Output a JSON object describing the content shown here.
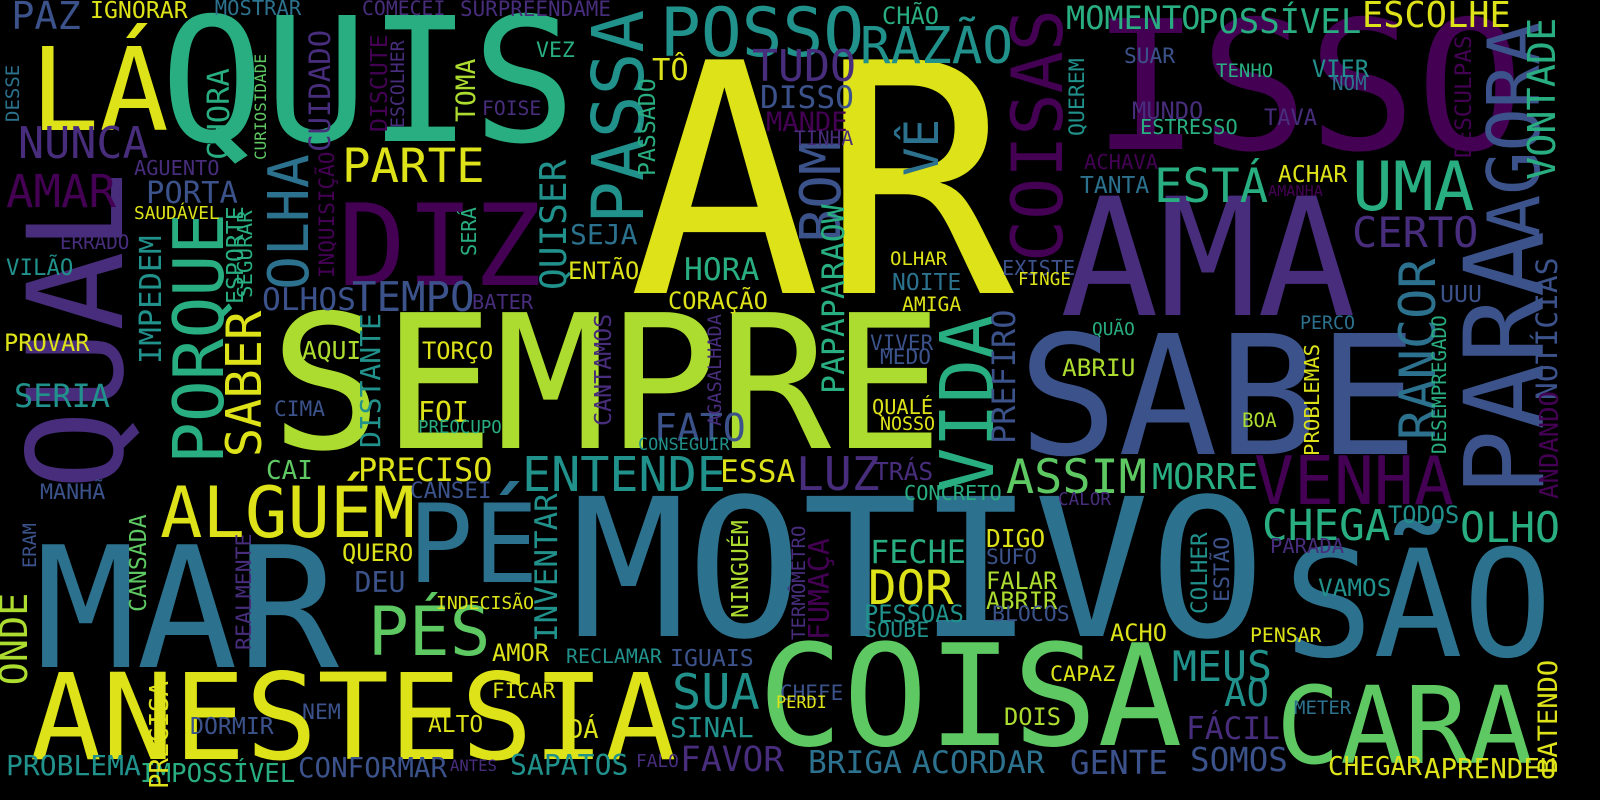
{
  "title": "",
  "palette": {
    "c0": "#440154",
    "c1": "#472d7b",
    "c2": "#3b528b",
    "c3": "#2c728e",
    "c4": "#21918c",
    "c5": "#28ae80",
    "c6": "#5ec962",
    "c7": "#addc30",
    "c8": "#dde318"
  },
  "words": [
    {
      "text": "AR",
      "c": "c8"
    },
    {
      "text": "SEMPRE",
      "c": "c7"
    },
    {
      "text": "MOTIVO",
      "c": "c3"
    },
    {
      "text": "ISSO",
      "c": "c0"
    },
    {
      "text": "QUIS",
      "c": "c5"
    },
    {
      "text": "AMA",
      "c": "c1"
    },
    {
      "text": "SABE",
      "c": "c2"
    },
    {
      "text": "MAR",
      "c": "c3"
    },
    {
      "text": "COISA",
      "c": "c6"
    },
    {
      "text": "ANESTESIA",
      "c": "c8"
    },
    {
      "text": "QUAL",
      "c": "c1"
    },
    {
      "text": "PARA",
      "c": "c2"
    },
    {
      "text": "DIZ",
      "c": "c0"
    },
    {
      "text": "SÃO",
      "c": "c3"
    },
    {
      "text": "CARA",
      "c": "c6"
    },
    {
      "text": "PÉ",
      "c": "c3"
    },
    {
      "text": "LÁ",
      "c": "c8"
    },
    {
      "text": "ALGUÉM",
      "c": "c8"
    },
    {
      "text": "PÉS",
      "c": "c6"
    },
    {
      "text": "VIDA",
      "c": "c5"
    },
    {
      "text": "PASSA",
      "c": "c4"
    },
    {
      "text": "POSSO",
      "c": "c4"
    },
    {
      "text": "COISAS",
      "c": "c0"
    },
    {
      "text": "AGORA",
      "c": "c2"
    },
    {
      "text": "PORQUE",
      "c": "c5"
    },
    {
      "text": "VENHA",
      "c": "c0"
    },
    {
      "text": "ENTENDE",
      "c": "c4"
    },
    {
      "text": "UMA",
      "c": "c5"
    },
    {
      "text": "RAZÃO",
      "c": "c4"
    },
    {
      "text": "PARTE",
      "c": "c8"
    },
    {
      "text": "NUNCA",
      "c": "c1"
    },
    {
      "text": "AMAR",
      "c": "c0"
    },
    {
      "text": "SABER",
      "c": "c8"
    },
    {
      "text": "OLHA",
      "c": "c3"
    },
    {
      "text": "RANCOR",
      "c": "c3"
    },
    {
      "text": "ASSIM",
      "c": "c6"
    },
    {
      "text": "LUZ",
      "c": "c1"
    },
    {
      "text": "DOR",
      "c": "c8"
    },
    {
      "text": "MEUS",
      "c": "c4"
    },
    {
      "text": "SUA",
      "c": "c4"
    },
    {
      "text": "CHEGA",
      "c": "c5"
    },
    {
      "text": "OLHO",
      "c": "c5"
    },
    {
      "text": "ESTÁ",
      "c": "c5"
    },
    {
      "text": "CERTO",
      "c": "c1"
    },
    {
      "text": "TEMPO",
      "c": "c2"
    },
    {
      "text": "BOM",
      "c": "c2"
    },
    {
      "text": "QUISER",
      "c": "c4"
    },
    {
      "text": "PREFIRO",
      "c": "c2"
    },
    {
      "text": "TUDO",
      "c": "c1"
    },
    {
      "text": "ESCOLHE",
      "c": "c8"
    },
    {
      "text": "POSSÍVEL",
      "c": "c5"
    },
    {
      "text": "MOMENTO",
      "c": "c5"
    },
    {
      "text": "PAPAPARAOW",
      "c": "c5"
    },
    {
      "text": "VÊ",
      "c": "c3"
    },
    {
      "text": "FATO",
      "c": "c2"
    },
    {
      "text": "MORRE",
      "c": "c5"
    },
    {
      "text": "FECHE",
      "c": "c5"
    },
    {
      "text": "ESSA",
      "c": "c8"
    },
    {
      "text": "SERIA",
      "c": "c4"
    },
    {
      "text": "INVENTAR",
      "c": "c4"
    },
    {
      "text": "PRECISO",
      "c": "c8"
    },
    {
      "text": "PESSOAS",
      "c": "c4"
    },
    {
      "text": "SINAL",
      "c": "c4"
    },
    {
      "text": "FAVOR",
      "c": "c1"
    },
    {
      "text": "BRIGA",
      "c": "c3"
    },
    {
      "text": "ACORDAR",
      "c": "c3"
    },
    {
      "text": "GENTE",
      "c": "c2"
    },
    {
      "text": "SOMOS",
      "c": "c2"
    },
    {
      "text": "FÁCIL",
      "c": "c1"
    },
    {
      "text": "AO",
      "c": "c4"
    },
    {
      "text": "VONTADE",
      "c": "c5"
    },
    {
      "text": "NOTÍCIAS",
      "c": "c2"
    },
    {
      "text": "DISSO",
      "c": "c2"
    },
    {
      "text": "HORA",
      "c": "c5"
    },
    {
      "text": "SEJA",
      "c": "c3"
    },
    {
      "text": "OLHOS",
      "c": "c2"
    },
    {
      "text": "IMPEDEM",
      "c": "c4"
    },
    {
      "text": "VAMOS",
      "c": "c4"
    },
    {
      "text": "DISTANTE",
      "c": "c4"
    },
    {
      "text": "ONDE",
      "c": "c7"
    },
    {
      "text": "PORTA",
      "c": "c2"
    },
    {
      "text": "CUIDADO",
      "c": "c1"
    },
    {
      "text": "CHORA",
      "c": "c5"
    },
    {
      "text": "PAZ",
      "c": "c2"
    },
    {
      "text": "VILÃO",
      "c": "c4"
    },
    {
      "text": "PROVAR",
      "c": "c8"
    },
    {
      "text": "CAI",
      "c": "c6"
    },
    {
      "text": "FOI",
      "c": "c8"
    },
    {
      "text": "MANDE",
      "c": "c0"
    },
    {
      "text": "QUEREM",
      "c": "c4"
    },
    {
      "text": "COLHER",
      "c": "c4"
    },
    {
      "text": "NINGUÉM",
      "c": "c7"
    },
    {
      "text": "FUMAÇA",
      "c": "c0"
    },
    {
      "text": "DIGO",
      "c": "c8"
    },
    {
      "text": "FALAR",
      "c": "c7"
    },
    {
      "text": "ABRIR",
      "c": "c7"
    },
    {
      "text": "ABRIU",
      "c": "c7"
    },
    {
      "text": "TORÇO",
      "c": "c8"
    },
    {
      "text": "CANSADA",
      "c": "c6"
    },
    {
      "text": "PROBLEMA",
      "c": "c4"
    },
    {
      "text": "IMPOSSÍVEL",
      "c": "c5"
    },
    {
      "text": "CONFORMAR",
      "c": "c2"
    },
    {
      "text": "SAPATOS",
      "c": "c4"
    },
    {
      "text": "TOMA",
      "c": "c7"
    },
    {
      "text": "OLHAR",
      "c": "c8"
    },
    {
      "text": "NOITE",
      "c": "c3"
    },
    {
      "text": "ANDANDO",
      "c": "c0"
    },
    {
      "text": "BATENDO",
      "c": "c8"
    },
    {
      "text": "CHEGAR",
      "c": "c8"
    },
    {
      "text": "APRENDEU",
      "c": "c8"
    },
    {
      "text": "ACHO",
      "c": "c8"
    },
    {
      "text": "PENSAR",
      "c": "c8"
    },
    {
      "text": "DOIS",
      "c": "c7"
    },
    {
      "text": "CAPAZ",
      "c": "c8"
    },
    {
      "text": "AMOR",
      "c": "c8"
    },
    {
      "text": "DÁ",
      "c": "c8"
    },
    {
      "text": "ALTO",
      "c": "c8"
    },
    {
      "text": "DORMIR",
      "c": "c2"
    },
    {
      "text": "IGUAIS",
      "c": "c2"
    },
    {
      "text": "RECLAMAR",
      "c": "c4"
    },
    {
      "text": "QUERO",
      "c": "c8"
    },
    {
      "text": "DEU",
      "c": "c2"
    },
    {
      "text": "CORAÇÃO",
      "c": "c8"
    },
    {
      "text": "ENTÃO",
      "c": "c8"
    },
    {
      "text": "AQUI",
      "c": "c7"
    },
    {
      "text": "ACHAR",
      "c": "c8"
    },
    {
      "text": "TANTA",
      "c": "c3"
    },
    {
      "text": "VIER",
      "c": "c4"
    },
    {
      "text": "MUNDO",
      "c": "c1"
    },
    {
      "text": "SUAR",
      "c": "c2"
    },
    {
      "text": "TENHO",
      "c": "c5"
    },
    {
      "text": "TODOS",
      "c": "c4"
    },
    {
      "text": "DESCULPAS",
      "c": "c0"
    },
    {
      "text": "PROBLEMAS",
      "c": "c8"
    },
    {
      "text": "DESEMPREGADO",
      "c": "c5"
    },
    {
      "text": "CANTAMOS",
      "c": "c1"
    },
    {
      "text": "PASSADO",
      "c": "c5"
    },
    {
      "text": "TÔ",
      "c": "c8"
    },
    {
      "text": "VEZ",
      "c": "c5"
    },
    {
      "text": "ESPORTE",
      "c": "c5"
    },
    {
      "text": "AGUENTO",
      "c": "c1"
    },
    {
      "text": "ERRADO",
      "c": "c1"
    },
    {
      "text": "SAUDÁVEL",
      "c": "c8"
    },
    {
      "text": "SEGURAR",
      "c": "c5"
    },
    {
      "text": "DISCUTE",
      "c": "c0"
    },
    {
      "text": "ESCOLHER",
      "c": "c1"
    },
    {
      "text": "CURIOSIDADE",
      "c": "c6"
    },
    {
      "text": "CHÃO",
      "c": "c5"
    },
    {
      "text": "COMECEI",
      "c": "c1"
    },
    {
      "text": "SURPREENDAME",
      "c": "c1"
    },
    {
      "text": "MOSTRAR",
      "c": "c3"
    },
    {
      "text": "IGNORAR",
      "c": "c8"
    },
    {
      "text": "DESSE",
      "c": "c3"
    },
    {
      "text": "FOISE",
      "c": "c1"
    },
    {
      "text": "TINHA",
      "c": "c1"
    },
    {
      "text": "INQUISIÇÃO",
      "c": "c0"
    },
    {
      "text": "SERÁ",
      "c": "c5"
    },
    {
      "text": "BATER",
      "c": "c1"
    },
    {
      "text": "CIMA",
      "c": "c2"
    },
    {
      "text": "PREOCUPO",
      "c": "c5"
    },
    {
      "text": "CONSEGUIR",
      "c": "c4"
    },
    {
      "text": "AGASALHADA",
      "c": "c1"
    },
    {
      "text": "VIVER",
      "c": "c2"
    },
    {
      "text": "MEDO",
      "c": "c2"
    },
    {
      "text": "QUALÉ",
      "c": "c8"
    },
    {
      "text": "NOSSO",
      "c": "c8"
    },
    {
      "text": "TRÁS",
      "c": "c1"
    },
    {
      "text": "CONCRETO",
      "c": "c5"
    },
    {
      "text": "AMIGA",
      "c": "c8"
    },
    {
      "text": "EXISTE",
      "c": "c2"
    },
    {
      "text": "FINGE",
      "c": "c8"
    },
    {
      "text": "QUÃO",
      "c": "c5"
    },
    {
      "text": "PERCO",
      "c": "c3"
    },
    {
      "text": "UUU",
      "c": "c2"
    },
    {
      "text": "BOA",
      "c": "c7"
    },
    {
      "text": "CALOR",
      "c": "c1"
    },
    {
      "text": "PARADA",
      "c": "c1"
    },
    {
      "text": "ESTÃO",
      "c": "c2"
    },
    {
      "text": "SUFO",
      "c": "c2"
    },
    {
      "text": "BLOCOS",
      "c": "c2"
    },
    {
      "text": "TERMÔMETRO",
      "c": "c1"
    },
    {
      "text": "SOUBE",
      "c": "c4"
    },
    {
      "text": "CHEFE",
      "c": "c2"
    },
    {
      "text": "PERDI",
      "c": "c8"
    },
    {
      "text": "FICAR",
      "c": "c8"
    },
    {
      "text": "NEM",
      "c": "c2"
    },
    {
      "text": "PRECISA",
      "c": "c8"
    },
    {
      "text": "ANTES",
      "c": "c1"
    },
    {
      "text": "FALO",
      "c": "c1"
    },
    {
      "text": "MANHÃ",
      "c": "c2"
    },
    {
      "text": "ERAM",
      "c": "c2"
    },
    {
      "text": "REALMENTE",
      "c": "c1"
    },
    {
      "text": "INDECISÃO",
      "c": "c8"
    },
    {
      "text": "CANSEI",
      "c": "c2"
    },
    {
      "text": "METER",
      "c": "c3"
    },
    {
      "text": "ESTRESSO",
      "c": "c5"
    },
    {
      "text": "ACHAVA",
      "c": "c0"
    },
    {
      "text": "AMANHA",
      "c": "c0"
    },
    {
      "text": "TAVA",
      "c": "c1"
    },
    {
      "text": "NOM",
      "c": "c3"
    }
  ]
}
